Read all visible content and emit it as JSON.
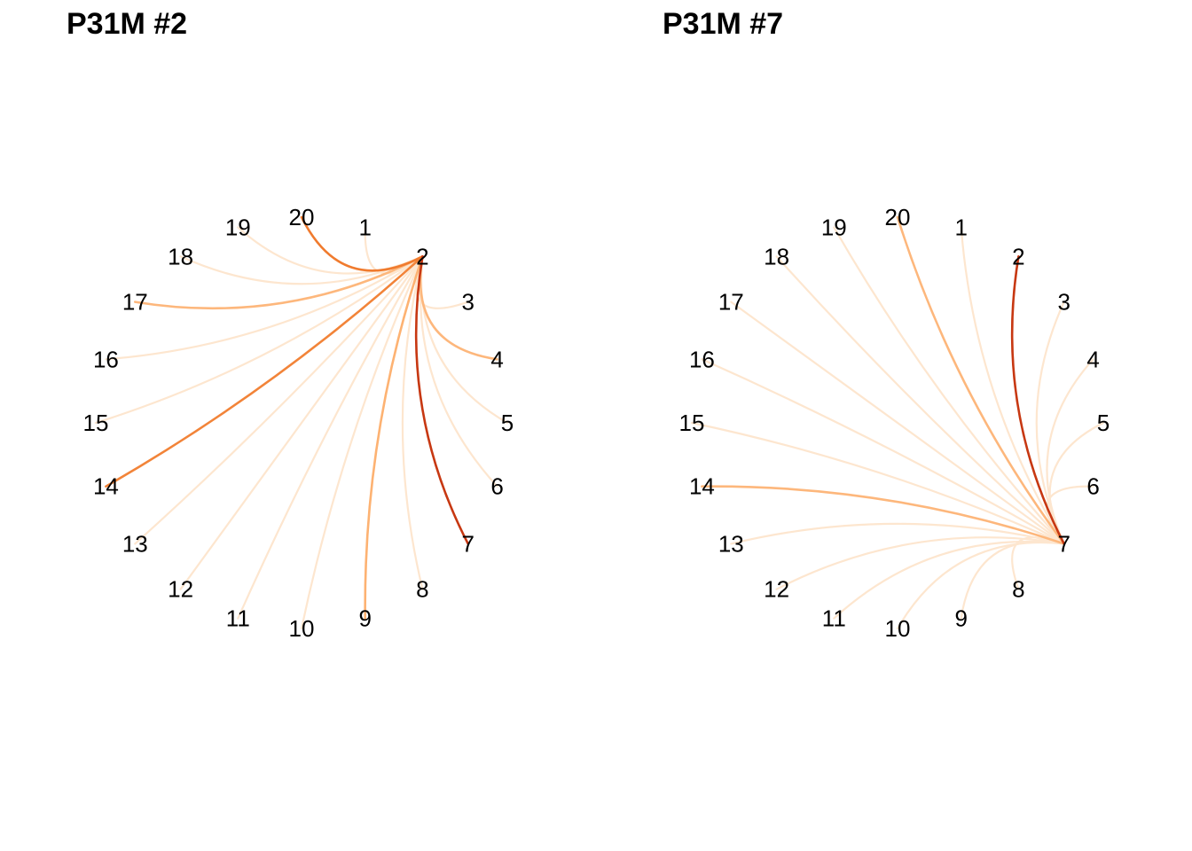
{
  "chart_data": [
    {
      "type": "arc-diagram",
      "title": "P31M #2",
      "nodes": [
        "1",
        "2",
        "3",
        "4",
        "5",
        "6",
        "7",
        "8",
        "9",
        "10",
        "11",
        "12",
        "13",
        "14",
        "15",
        "16",
        "17",
        "18",
        "19",
        "20"
      ],
      "focus": "2",
      "edges": [
        {
          "to": "1",
          "weight": 0.08
        },
        {
          "to": "3",
          "weight": 0.1
        },
        {
          "to": "4",
          "weight": 0.35
        },
        {
          "to": "5",
          "weight": 0.1
        },
        {
          "to": "6",
          "weight": 0.1
        },
        {
          "to": "7",
          "weight": 1.0
        },
        {
          "to": "8",
          "weight": 0.1
        },
        {
          "to": "9",
          "weight": 0.38
        },
        {
          "to": "10",
          "weight": 0.1
        },
        {
          "to": "11",
          "weight": 0.1
        },
        {
          "to": "12",
          "weight": 0.1
        },
        {
          "to": "13",
          "weight": 0.1
        },
        {
          "to": "14",
          "weight": 0.58
        },
        {
          "to": "15",
          "weight": 0.1
        },
        {
          "to": "16",
          "weight": 0.1
        },
        {
          "to": "17",
          "weight": 0.35
        },
        {
          "to": "18",
          "weight": 0.1
        },
        {
          "to": "19",
          "weight": 0.1
        },
        {
          "to": "20",
          "weight": 0.62
        }
      ]
    },
    {
      "type": "arc-diagram",
      "title": "P31M #7",
      "nodes": [
        "1",
        "2",
        "3",
        "4",
        "5",
        "6",
        "7",
        "8",
        "9",
        "10",
        "11",
        "12",
        "13",
        "14",
        "15",
        "16",
        "17",
        "18",
        "19",
        "20"
      ],
      "focus": "7",
      "edges": [
        {
          "to": "1",
          "weight": 0.1
        },
        {
          "to": "2",
          "weight": 1.0
        },
        {
          "to": "3",
          "weight": 0.1
        },
        {
          "to": "4",
          "weight": 0.1
        },
        {
          "to": "5",
          "weight": 0.1
        },
        {
          "to": "6",
          "weight": 0.1
        },
        {
          "to": "8",
          "weight": 0.1
        },
        {
          "to": "9",
          "weight": 0.1
        },
        {
          "to": "10",
          "weight": 0.1
        },
        {
          "to": "11",
          "weight": 0.1
        },
        {
          "to": "12",
          "weight": 0.1
        },
        {
          "to": "13",
          "weight": 0.1
        },
        {
          "to": "14",
          "weight": 0.35
        },
        {
          "to": "15",
          "weight": 0.1
        },
        {
          "to": "16",
          "weight": 0.1
        },
        {
          "to": "17",
          "weight": 0.1
        },
        {
          "to": "18",
          "weight": 0.1
        },
        {
          "to": "19",
          "weight": 0.1
        },
        {
          "to": "20",
          "weight": 0.35
        }
      ]
    }
  ],
  "colors": {
    "low": "#FDE6CF",
    "mid": "#FDAE6B",
    "high_mid": "#F07B2E",
    "high": "#C73812",
    "text": "#000000"
  }
}
